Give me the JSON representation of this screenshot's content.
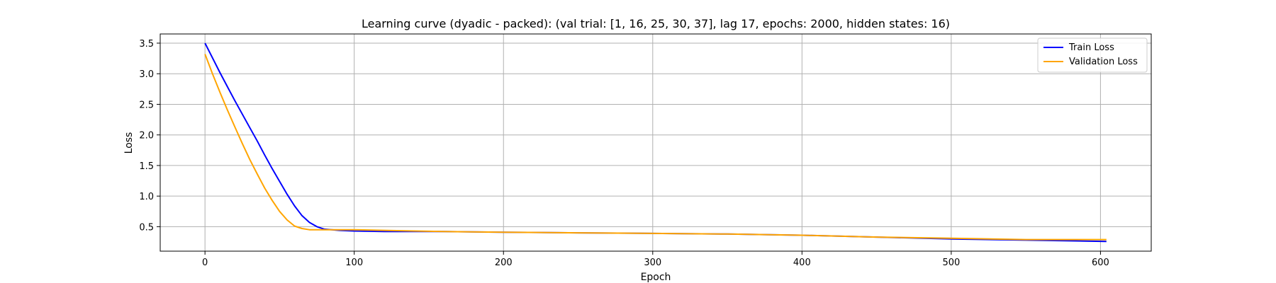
{
  "chart_data": {
    "type": "line",
    "title": "Learning curve (dyadic - packed): (val trial: [1, 16, 25, 30, 37], lag 17, epochs: 2000, hidden states: 16)",
    "xlabel": "Epoch",
    "ylabel": "Loss",
    "xlim": [
      -30,
      634
    ],
    "ylim": [
      0.1,
      3.65
    ],
    "xticks": [
      0,
      100,
      200,
      300,
      400,
      500,
      600
    ],
    "yticks": [
      0.5,
      1.0,
      1.5,
      2.0,
      2.5,
      3.0,
      3.5
    ],
    "xtick_labels": [
      "0",
      "100",
      "200",
      "300",
      "400",
      "500",
      "600"
    ],
    "ytick_labels": [
      "0.5",
      "1.0",
      "1.5",
      "2.0",
      "2.5",
      "3.0",
      "3.5"
    ],
    "grid": true,
    "legend_position": "top-right",
    "series": [
      {
        "name": "Train Loss",
        "color": "#0000ff",
        "x": [
          0,
          5,
          10,
          15,
          20,
          25,
          30,
          35,
          40,
          45,
          50,
          55,
          60,
          65,
          70,
          75,
          80,
          90,
          100,
          120,
          140,
          160,
          200,
          250,
          300,
          350,
          400,
          450,
          500,
          550,
          604
        ],
        "y": [
          3.5,
          3.26,
          3.02,
          2.79,
          2.56,
          2.34,
          2.12,
          1.9,
          1.67,
          1.45,
          1.24,
          1.03,
          0.84,
          0.68,
          0.57,
          0.5,
          0.46,
          0.44,
          0.43,
          0.42,
          0.42,
          0.42,
          0.41,
          0.4,
          0.39,
          0.38,
          0.36,
          0.33,
          0.3,
          0.28,
          0.26
        ]
      },
      {
        "name": "Validation Loss",
        "color": "#ffa500",
        "x": [
          0,
          5,
          10,
          15,
          20,
          25,
          30,
          35,
          40,
          45,
          50,
          55,
          60,
          65,
          70,
          75,
          80,
          90,
          100,
          120,
          140,
          160,
          200,
          250,
          300,
          350,
          400,
          450,
          500,
          550,
          604
        ],
        "y": [
          3.32,
          3.0,
          2.7,
          2.41,
          2.13,
          1.86,
          1.6,
          1.36,
          1.13,
          0.93,
          0.75,
          0.61,
          0.51,
          0.47,
          0.45,
          0.45,
          0.45,
          0.45,
          0.45,
          0.44,
          0.43,
          0.42,
          0.41,
          0.4,
          0.39,
          0.38,
          0.36,
          0.33,
          0.31,
          0.29,
          0.29
        ]
      }
    ]
  }
}
